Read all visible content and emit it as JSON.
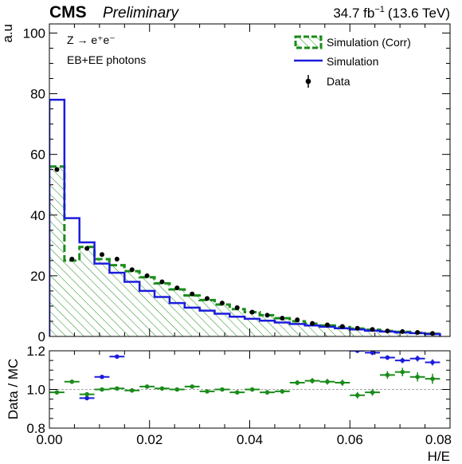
{
  "header": {
    "experiment": "CMS",
    "status": "Preliminary",
    "lumi_value": "34.7 fb",
    "lumi_exp": "−1",
    "energy": "(13.6 TeV)"
  },
  "annotations": {
    "process": "Z → e⁺e⁻",
    "selection": "EB+EE photons"
  },
  "colors": {
    "corr": "#1a8c1a",
    "sim": "#1c1cdc",
    "data": "#000000",
    "ratio_sim": "#1c1cdc",
    "ratio_corr": "#1a8c1a"
  },
  "chart_data": [
    {
      "type": "histogram",
      "ylabel": "a.u",
      "xlim": [
        0,
        0.08
      ],
      "ylim": [
        0,
        103
      ],
      "yticks": [
        0,
        20,
        40,
        60,
        80,
        100
      ],
      "bin_edges": [
        0,
        0.003,
        0.006,
        0.009,
        0.012,
        0.015,
        0.018,
        0.021,
        0.024,
        0.027,
        0.03,
        0.033,
        0.036,
        0.039,
        0.042,
        0.045,
        0.048,
        0.051,
        0.054,
        0.057,
        0.06,
        0.063,
        0.066,
        0.069,
        0.072,
        0.075,
        0.078
      ],
      "legend": {
        "corr": "Simulation (Corr)",
        "sim": "Simulation",
        "data": "Data"
      },
      "series": [
        {
          "name": "Simulation (Corr)",
          "style": "hatched-dashed",
          "values": [
            56,
            25,
            29.5,
            25.5,
            23.5,
            21.5,
            19.5,
            17.5,
            15.5,
            13.5,
            12.0,
            10.5,
            9.0,
            8.0,
            7.0,
            6.0,
            5.0,
            4.2,
            3.6,
            3.1,
            2.6,
            2.2,
            1.8,
            1.5,
            1.2,
            0.9
          ]
        },
        {
          "name": "Simulation",
          "style": "step",
          "values": [
            78,
            39,
            31,
            24,
            21,
            18,
            15,
            13,
            11,
            9.5,
            8.5,
            7.5,
            6.5,
            5.8,
            5.2,
            4.6,
            4.1,
            3.6,
            3.2,
            2.7,
            2.3,
            1.9,
            1.6,
            1.3,
            1.1,
            0.8
          ]
        },
        {
          "name": "Data",
          "style": "points",
          "x": [
            0.0015,
            0.0045,
            0.0075,
            0.0105,
            0.0135,
            0.0165,
            0.0195,
            0.0225,
            0.0255,
            0.0285,
            0.0315,
            0.0345,
            0.0375,
            0.0405,
            0.0435,
            0.0465,
            0.0495,
            0.0525,
            0.0555,
            0.0585,
            0.0615,
            0.0645,
            0.0675,
            0.0705,
            0.0735,
            0.0765
          ],
          "values": [
            55,
            25.5,
            29,
            27,
            25.5,
            22,
            20,
            18,
            16,
            14,
            12.5,
            11,
            9.5,
            8,
            7,
            6,
            5.5,
            4.3,
            3.8,
            3.3,
            2.7,
            2.3,
            1.8,
            1.6,
            1.3,
            1.0
          ]
        }
      ]
    },
    {
      "type": "scatter",
      "xlabel": "H/E",
      "ylabel": "Data / MC",
      "xlim": [
        0,
        0.08
      ],
      "ylim": [
        0.8,
        1.2
      ],
      "yticks": [
        "0.8",
        "1.0",
        "1.2"
      ],
      "xticks": [
        "0.00",
        "0.02",
        "0.04",
        "0.06",
        "0.08"
      ],
      "reference_line": 1.0,
      "series": [
        {
          "name": "Simulation",
          "x": [
            0.0075,
            0.0105,
            0.0135,
            0.0555,
            0.0585,
            0.0615,
            0.0645,
            0.0675,
            0.0705,
            0.0735,
            0.0765
          ],
          "values": [
            0.955,
            1.065,
            1.17,
            1.24,
            1.21,
            1.2,
            1.19,
            1.165,
            1.15,
            1.16,
            1.14
          ],
          "err": [
            0.006,
            0.005,
            0.005,
            0.01,
            0.01,
            0.01,
            0.012,
            0.012,
            0.014,
            0.015,
            0.016
          ]
        },
        {
          "name": "Simulation (Corr)",
          "x": [
            0.0015,
            0.0045,
            0.0075,
            0.0105,
            0.0135,
            0.0165,
            0.0195,
            0.0225,
            0.0255,
            0.0285,
            0.0315,
            0.0345,
            0.0375,
            0.0405,
            0.0435,
            0.0465,
            0.0495,
            0.0525,
            0.0555,
            0.0585,
            0.0615,
            0.0645,
            0.0675,
            0.0705,
            0.0735,
            0.0765
          ],
          "values": [
            0.985,
            1.04,
            0.975,
            1.0,
            1.005,
            0.995,
            1.015,
            1.005,
            1.0,
            1.015,
            0.99,
            1.0,
            0.985,
            1.0,
            0.985,
            0.99,
            1.035,
            1.045,
            1.04,
            1.035,
            0.97,
            0.985,
            1.075,
            1.09,
            1.065,
            1.055
          ],
          "err": [
            0.004,
            0.006,
            0.006,
            0.006,
            0.006,
            0.007,
            0.007,
            0.007,
            0.008,
            0.008,
            0.009,
            0.01,
            0.01,
            0.011,
            0.012,
            0.012,
            0.013,
            0.014,
            0.015,
            0.016,
            0.017,
            0.018,
            0.02,
            0.022,
            0.024,
            0.026
          ]
        }
      ]
    }
  ]
}
